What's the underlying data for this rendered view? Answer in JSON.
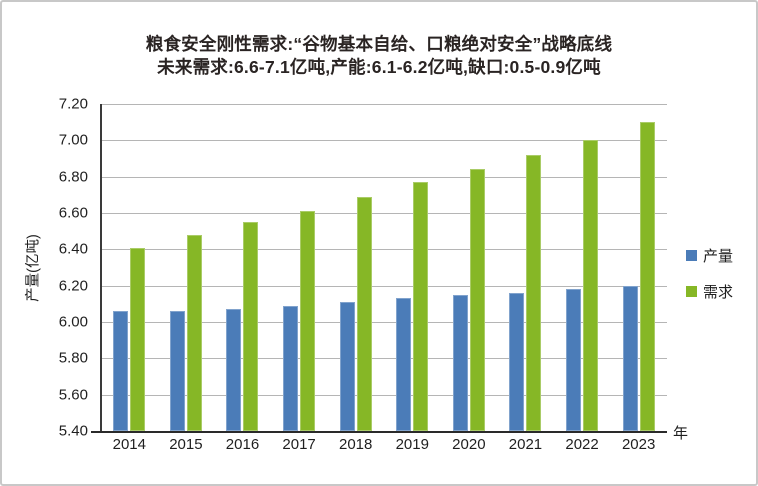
{
  "title": {
    "line1": "粮食安全刚性需求:“谷物基本自给、口粮绝对安全”战略底线",
    "line2": "未来需求:6.6-7.1亿吨,产能:6.1-6.2亿吨,缺口:0.5-0.9亿吨"
  },
  "chart_data": {
    "type": "bar",
    "categories": [
      "2014",
      "2015",
      "2016",
      "2017",
      "2018",
      "2019",
      "2020",
      "2021",
      "2022",
      "2023"
    ],
    "series": [
      {
        "key": "production",
        "name": "产量",
        "color": "#4b7cb8",
        "values": [
          6.06,
          6.06,
          6.07,
          6.09,
          6.11,
          6.13,
          6.15,
          6.16,
          6.18,
          6.2
        ]
      },
      {
        "key": "demand",
        "name": "需求",
        "color": "#86b726",
        "values": [
          6.41,
          6.48,
          6.55,
          6.61,
          6.69,
          6.77,
          6.84,
          6.92,
          7.0,
          7.1
        ]
      }
    ],
    "xlabel": "年",
    "ylabel": "产量(亿吨)",
    "ylim": [
      5.4,
      7.2
    ],
    "ytick_step": 0.2,
    "ytick_labels": [
      "5.40",
      "5.60",
      "5.80",
      "6.00",
      "6.20",
      "6.40",
      "6.60",
      "6.80",
      "7.00",
      "7.20"
    ],
    "grid": "horizontal",
    "legend_position": "right"
  },
  "colors": {
    "production_bar": "#4b7cb8",
    "demand_bar": "#86b726",
    "gridline": "#b5b5b5",
    "axis_line": "#2a2a2a",
    "frame_border": "#c8c8c8",
    "title_text": "#2a2423"
  }
}
